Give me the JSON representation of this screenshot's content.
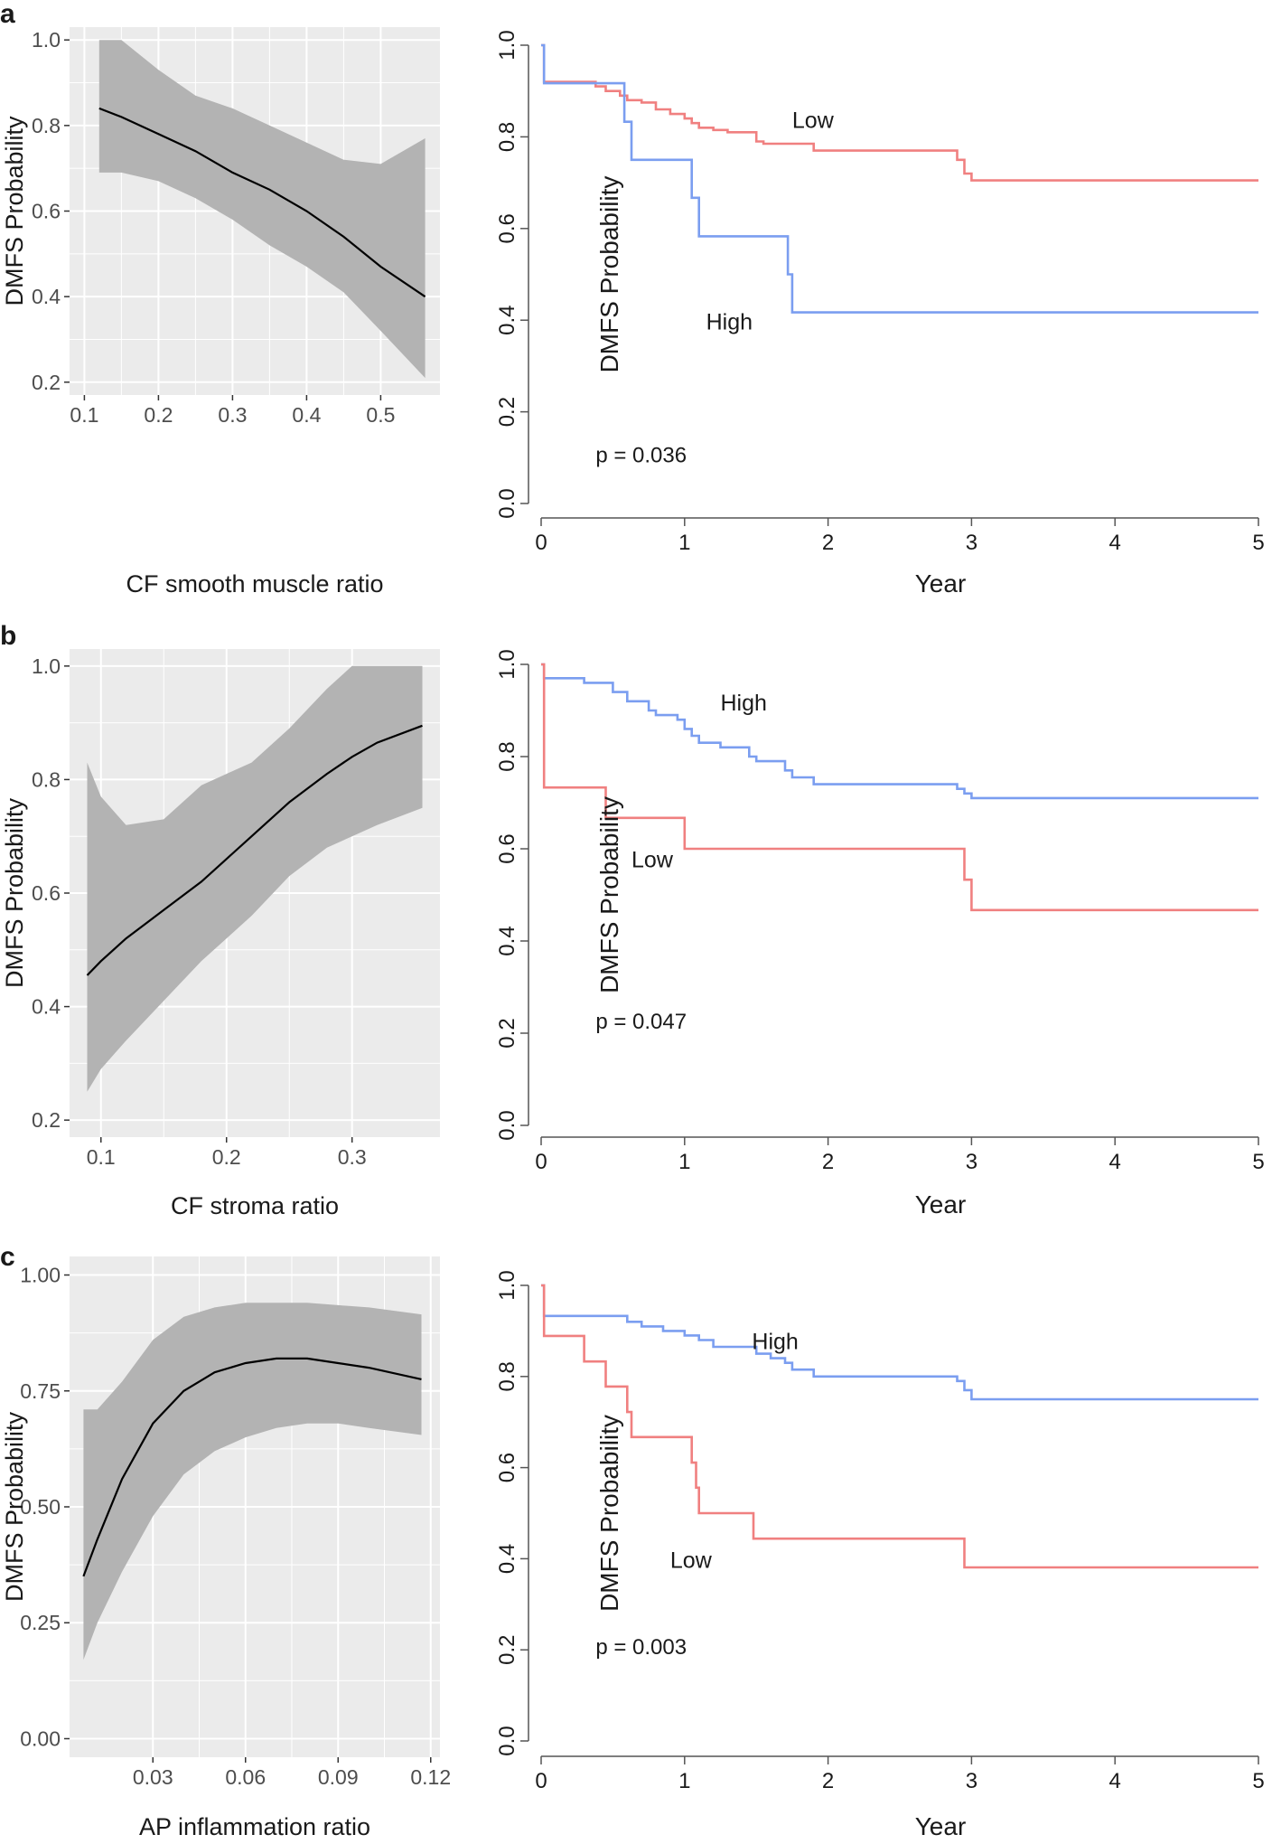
{
  "figure": {
    "panel_labels": [
      "a",
      "b",
      "c"
    ]
  },
  "chart_data": [
    {
      "id": "a-left",
      "type": "line",
      "style": "ggplot-smooth",
      "title": "",
      "xlabel": "CF smooth muscle ratio",
      "ylabel": "DMFS Probability",
      "xlim": [
        0.08,
        0.58
      ],
      "ylim": [
        0.17,
        1.03
      ],
      "xticks": [
        0.1,
        0.2,
        0.3,
        0.4,
        0.5
      ],
      "xtick_labels": [
        "0.1",
        "0.2",
        "0.3",
        "0.4",
        "0.5"
      ],
      "yticks": [
        0.2,
        0.4,
        0.6,
        0.8,
        1.0
      ],
      "ytick_labels": [
        "0.2",
        "0.4",
        "0.6",
        "0.8",
        "1.0"
      ],
      "grid": true,
      "colors": {
        "panel": "#ebebeb",
        "band": "#b3b3b3",
        "line": "#000000",
        "grid": "#ffffff"
      },
      "fit": {
        "x": [
          0.12,
          0.15,
          0.2,
          0.25,
          0.3,
          0.35,
          0.4,
          0.45,
          0.5,
          0.56
        ],
        "y": [
          0.84,
          0.82,
          0.78,
          0.74,
          0.69,
          0.65,
          0.6,
          0.54,
          0.47,
          0.4
        ],
        "lo": [
          0.69,
          0.69,
          0.67,
          0.63,
          0.58,
          0.52,
          0.47,
          0.41,
          0.32,
          0.21
        ],
        "hi": [
          1.0,
          1.0,
          0.93,
          0.87,
          0.84,
          0.8,
          0.76,
          0.72,
          0.71,
          0.77
        ]
      }
    },
    {
      "id": "a-right",
      "type": "line",
      "style": "kaplan-meier",
      "title": "",
      "xlabel": "Year",
      "ylabel": "DMFS Probability",
      "xlim": [
        0,
        5
      ],
      "ylim": [
        0,
        1
      ],
      "xticks": [
        0,
        1,
        2,
        3,
        4,
        5
      ],
      "xtick_labels": [
        "0",
        "1",
        "2",
        "3",
        "4",
        "5"
      ],
      "yticks": [
        0,
        0.2,
        0.4,
        0.6,
        0.8,
        1.0
      ],
      "ytick_labels": [
        "0.0",
        "0.2",
        "0.4",
        "0.6",
        "0.8",
        "1.0"
      ],
      "grid": false,
      "annotation": "p = 0.036",
      "annotation_at": [
        0.38,
        0.09
      ],
      "series": [
        {
          "name": "Low",
          "color": "#f08080",
          "label_at": [
            1.75,
            0.82
          ],
          "t": [
            0,
            0.02,
            0.35,
            0.38,
            0.45,
            0.55,
            0.6,
            0.7,
            0.8,
            0.9,
            1.0,
            1.05,
            1.1,
            1.2,
            1.3,
            1.5,
            1.55,
            1.9,
            2.9,
            2.95,
            3.0,
            5.0
          ],
          "s": [
            1.0,
            0.92,
            0.92,
            0.91,
            0.9,
            0.89,
            0.88,
            0.875,
            0.86,
            0.85,
            0.84,
            0.83,
            0.82,
            0.815,
            0.81,
            0.79,
            0.785,
            0.77,
            0.75,
            0.72,
            0.705,
            0.705
          ]
        },
        {
          "name": "High",
          "color": "#7b9ef0",
          "label_at": [
            1.15,
            0.38
          ],
          "t": [
            0,
            0.02,
            0.58,
            0.63,
            1.05,
            1.1,
            1.72,
            1.75,
            5.0
          ],
          "s": [
            1.0,
            0.917,
            0.833,
            0.75,
            0.667,
            0.583,
            0.5,
            0.417,
            0.417
          ]
        }
      ]
    },
    {
      "id": "b-left",
      "type": "line",
      "style": "ggplot-smooth",
      "title": "",
      "xlabel": "CF stroma ratio",
      "ylabel": "DMFS Probability",
      "xlim": [
        0.075,
        0.37
      ],
      "ylim": [
        0.17,
        1.03
      ],
      "xticks": [
        0.1,
        0.2,
        0.3
      ],
      "xtick_labels": [
        "0.1",
        "0.2",
        "0.3"
      ],
      "yticks": [
        0.2,
        0.4,
        0.6,
        0.8,
        1.0
      ],
      "ytick_labels": [
        "0.2",
        "0.4",
        "0.6",
        "0.8",
        "1.0"
      ],
      "grid": true,
      "colors": {
        "panel": "#ebebeb",
        "band": "#b3b3b3",
        "line": "#000000",
        "grid": "#ffffff"
      },
      "fit": {
        "x": [
          0.089,
          0.1,
          0.12,
          0.15,
          0.18,
          0.2,
          0.22,
          0.25,
          0.28,
          0.3,
          0.32,
          0.356
        ],
        "y": [
          0.455,
          0.48,
          0.52,
          0.57,
          0.62,
          0.66,
          0.7,
          0.76,
          0.81,
          0.84,
          0.865,
          0.895
        ],
        "lo": [
          0.25,
          0.29,
          0.34,
          0.41,
          0.48,
          0.52,
          0.56,
          0.63,
          0.68,
          0.7,
          0.72,
          0.75
        ],
        "hi": [
          0.83,
          0.77,
          0.72,
          0.73,
          0.79,
          0.81,
          0.83,
          0.89,
          0.96,
          1.0,
          1.0,
          1.0
        ]
      }
    },
    {
      "id": "b-right",
      "type": "line",
      "style": "kaplan-meier",
      "title": "",
      "xlabel": "Year",
      "ylabel": "DMFS Probability",
      "xlim": [
        0,
        5
      ],
      "ylim": [
        0,
        1
      ],
      "xticks": [
        0,
        1,
        2,
        3,
        4,
        5
      ],
      "xtick_labels": [
        "0",
        "1",
        "2",
        "3",
        "4",
        "5"
      ],
      "yticks": [
        0,
        0.2,
        0.4,
        0.6,
        0.8,
        1.0
      ],
      "ytick_labels": [
        "0.0",
        "0.2",
        "0.4",
        "0.6",
        "0.8",
        "1.0"
      ],
      "grid": false,
      "annotation": "p = 0.047",
      "annotation_at": [
        0.38,
        0.21
      ],
      "series": [
        {
          "name": "High",
          "color": "#7b9ef0",
          "label_at": [
            1.25,
            0.9
          ],
          "t": [
            0,
            0.02,
            0.3,
            0.5,
            0.6,
            0.75,
            0.8,
            0.95,
            1.0,
            1.05,
            1.1,
            1.25,
            1.45,
            1.5,
            1.7,
            1.75,
            1.9,
            2.9,
            2.95,
            3.0,
            5.0
          ],
          "s": [
            1.0,
            0.97,
            0.96,
            0.94,
            0.92,
            0.9,
            0.89,
            0.88,
            0.86,
            0.845,
            0.83,
            0.82,
            0.8,
            0.79,
            0.77,
            0.755,
            0.74,
            0.73,
            0.72,
            0.71,
            0.71
          ]
        },
        {
          "name": "Low",
          "color": "#f08080",
          "label_at": [
            0.63,
            0.56
          ],
          "t": [
            0,
            0.02,
            0.45,
            1.0,
            2.95,
            3.0,
            5.0
          ],
          "s": [
            1.0,
            0.733,
            0.667,
            0.6,
            0.533,
            0.467,
            0.467
          ]
        }
      ]
    },
    {
      "id": "c-left",
      "type": "line",
      "style": "ggplot-smooth",
      "title": "",
      "xlabel": "AP inflammation ratio",
      "ylabel": "DMFS Probability",
      "xlim": [
        0.003,
        0.123
      ],
      "ylim": [
        -0.04,
        1.04
      ],
      "xticks": [
        0.03,
        0.06,
        0.09,
        0.12
      ],
      "xtick_labels": [
        "0.03",
        "0.06",
        "0.09",
        "0.12"
      ],
      "yticks": [
        0.0,
        0.25,
        0.5,
        0.75,
        1.0
      ],
      "ytick_labels": [
        "0.00",
        "0.25",
        "0.50",
        "0.75",
        "1.00"
      ],
      "grid": true,
      "colors": {
        "panel": "#ebebeb",
        "band": "#b3b3b3",
        "line": "#000000",
        "grid": "#ffffff"
      },
      "fit": {
        "x": [
          0.0075,
          0.012,
          0.02,
          0.03,
          0.04,
          0.05,
          0.06,
          0.07,
          0.08,
          0.09,
          0.1,
          0.117
        ],
        "y": [
          0.35,
          0.43,
          0.56,
          0.68,
          0.75,
          0.79,
          0.81,
          0.82,
          0.82,
          0.81,
          0.8,
          0.775
        ],
        "lo": [
          0.17,
          0.25,
          0.36,
          0.48,
          0.57,
          0.62,
          0.65,
          0.67,
          0.68,
          0.68,
          0.67,
          0.655
        ],
        "hi": [
          0.71,
          0.71,
          0.77,
          0.86,
          0.91,
          0.93,
          0.94,
          0.94,
          0.94,
          0.935,
          0.93,
          0.915
        ]
      }
    },
    {
      "id": "c-right",
      "type": "line",
      "style": "kaplan-meier",
      "title": "",
      "xlabel": "Year",
      "ylabel": "DMFS Probability",
      "xlim": [
        0,
        5
      ],
      "ylim": [
        0,
        1
      ],
      "xticks": [
        0,
        1,
        2,
        3,
        4,
        5
      ],
      "xtick_labels": [
        "0",
        "1",
        "2",
        "3",
        "4",
        "5"
      ],
      "yticks": [
        0,
        0.2,
        0.4,
        0.6,
        0.8,
        1.0
      ],
      "ytick_labels": [
        "0.0",
        "0.2",
        "0.4",
        "0.6",
        "0.8",
        "1.0"
      ],
      "grid": false,
      "annotation": "p = 0.003",
      "annotation_at": [
        0.38,
        0.19
      ],
      "series": [
        {
          "name": "High",
          "color": "#7b9ef0",
          "label_at": [
            1.47,
            0.86
          ],
          "t": [
            0,
            0.02,
            0.6,
            0.7,
            0.85,
            1.0,
            1.1,
            1.2,
            1.5,
            1.6,
            1.7,
            1.75,
            1.9,
            2.9,
            2.95,
            3.0,
            5.0
          ],
          "s": [
            1.0,
            0.933,
            0.92,
            0.91,
            0.9,
            0.89,
            0.88,
            0.865,
            0.85,
            0.84,
            0.83,
            0.815,
            0.8,
            0.79,
            0.77,
            0.75,
            0.75
          ]
        },
        {
          "name": "Low",
          "color": "#f08080",
          "label_at": [
            0.9,
            0.38
          ],
          "t": [
            0,
            0.02,
            0.3,
            0.45,
            0.6,
            0.63,
            1.05,
            1.08,
            1.1,
            1.48,
            2.95,
            5.0
          ],
          "s": [
            1.0,
            0.889,
            0.833,
            0.778,
            0.722,
            0.667,
            0.611,
            0.556,
            0.5,
            0.444,
            0.381,
            0.381
          ]
        }
      ]
    }
  ]
}
